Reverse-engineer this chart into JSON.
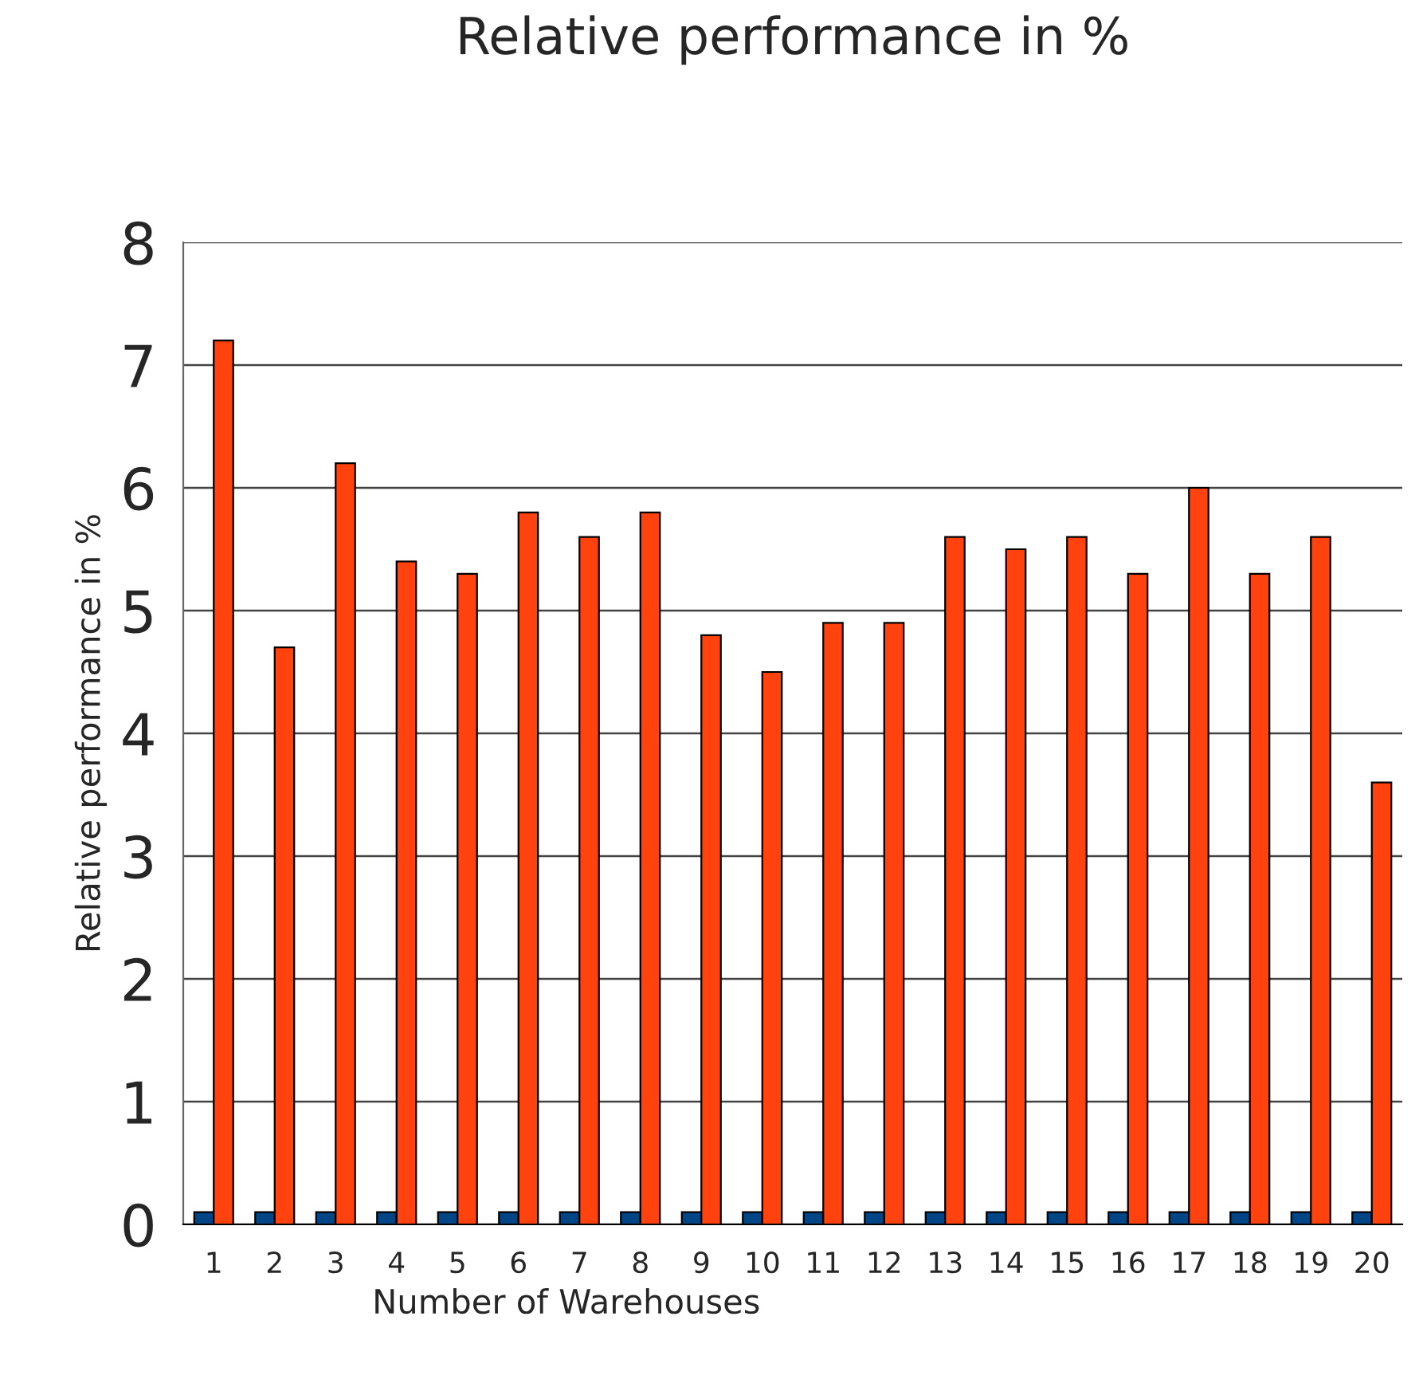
{
  "chart_data": {
    "type": "bar",
    "title": "Relative performance in %",
    "xlabel": "Number of Warehouses",
    "ylabel": "Relative performance in %",
    "categories": [
      "1",
      "2",
      "3",
      "4",
      "5",
      "6",
      "7",
      "8",
      "9",
      "10",
      "11",
      "12",
      "13",
      "14",
      "15",
      "16",
      "17",
      "18",
      "19",
      "20"
    ],
    "series": [
      {
        "color": "#004586",
        "values": [
          0.1,
          0.1,
          0.1,
          0.1,
          0.1,
          0.1,
          0.1,
          0.1,
          0.1,
          0.1,
          0.1,
          0.1,
          0.1,
          0.1,
          0.1,
          0.1,
          0.1,
          0.1,
          0.1,
          0.1
        ]
      },
      {
        "color": "#ff420e",
        "values": [
          7.2,
          4.7,
          6.2,
          5.4,
          5.3,
          5.8,
          5.6,
          5.8,
          4.8,
          4.5,
          4.9,
          4.9,
          5.6,
          5.5,
          5.6,
          5.3,
          6.0,
          5.3,
          5.6,
          3.6
        ]
      }
    ],
    "ylim": [
      0,
      8
    ],
    "yticks": [
      0,
      1,
      2,
      3,
      4,
      5,
      6,
      7,
      8
    ],
    "grid": "y",
    "legend": false
  }
}
